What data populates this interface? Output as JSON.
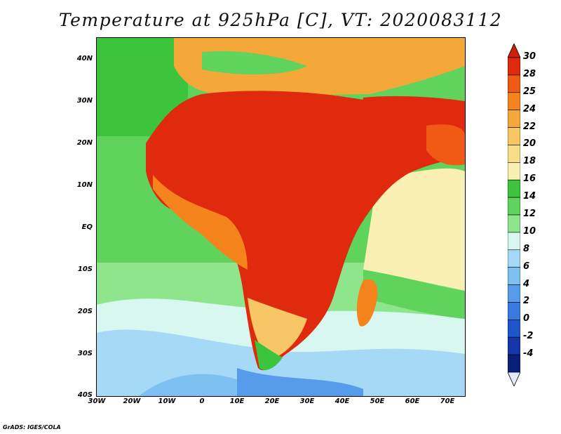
{
  "title": "Temperature at 925hPa [C], VT: 2020083112",
  "credit": "GrADS: IGES/COLA",
  "axes": {
    "y_ticks": [
      "40N",
      "30N",
      "20N",
      "10N",
      "EQ",
      "10S",
      "20S",
      "30S",
      "40S"
    ],
    "x_ticks": [
      "30W",
      "20W",
      "10W",
      "0",
      "10E",
      "20E",
      "30E",
      "40E",
      "50E",
      "60E",
      "70E"
    ]
  },
  "colorbar": {
    "levels": [
      "30",
      "28",
      "25",
      "24",
      "22",
      "20",
      "18",
      "16",
      "14",
      "12",
      "10",
      "8",
      "6",
      "4",
      "2",
      "0",
      "-2",
      "-4"
    ],
    "colors": [
      "#e02a0e",
      "#f05a14",
      "#f5841d",
      "#f5a83a",
      "#f6c764",
      "#f9de8a",
      "#fbf0b4",
      "#3bc43c",
      "#5fd35b",
      "#8fe58b",
      "#d8f7f0",
      "#a6d9f5",
      "#7cc1f2",
      "#569cea",
      "#377be0",
      "#1e55cc",
      "#1535a8",
      "#0a1f7a"
    ],
    "extend_top_color": "#d01e0a",
    "extend_bottom_color": "#e3e8fb"
  }
}
